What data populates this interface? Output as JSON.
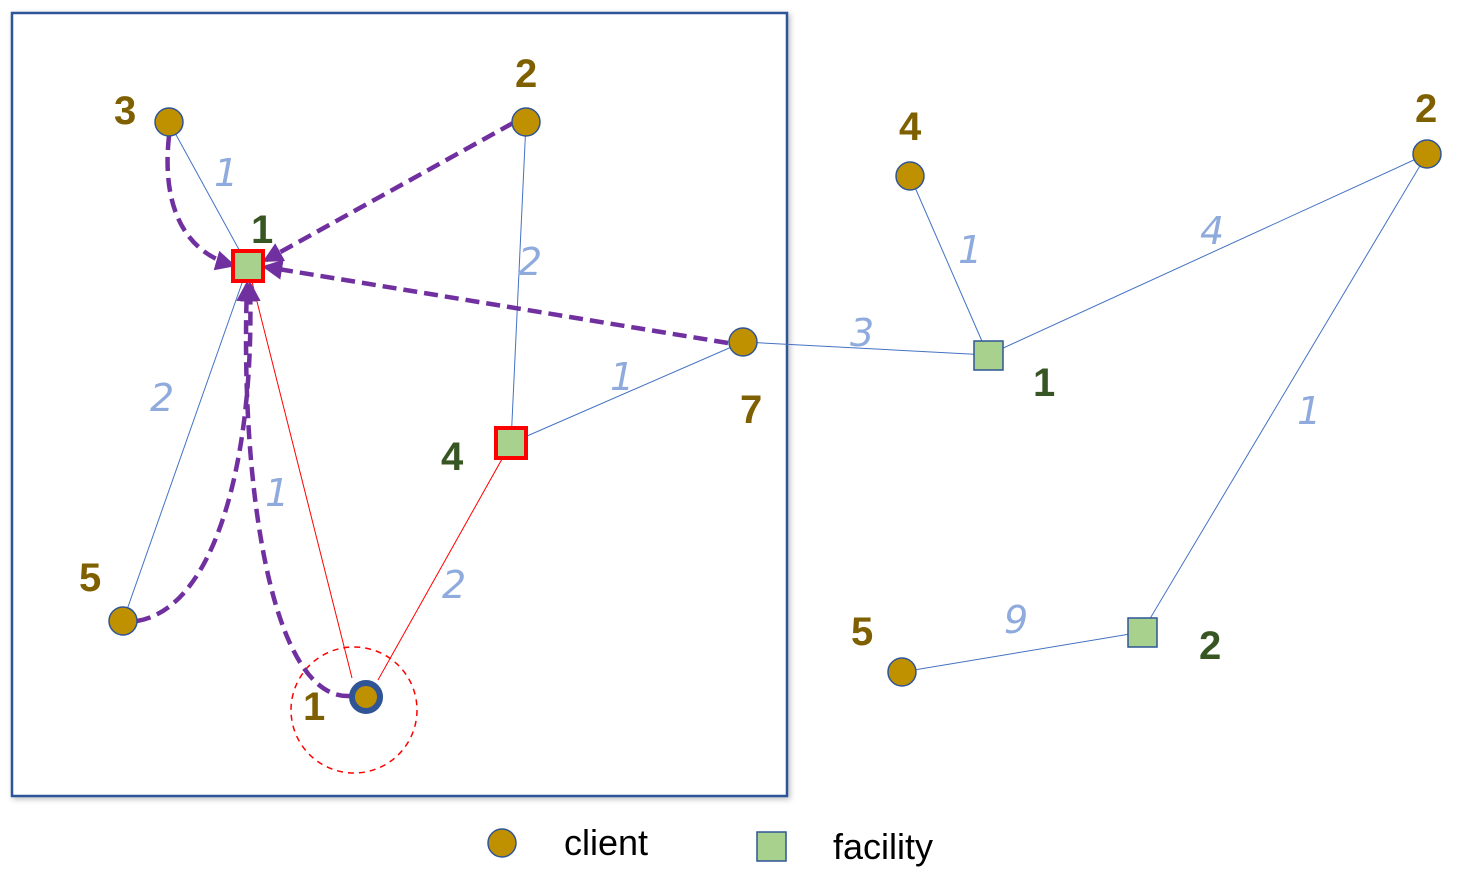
{
  "colors": {
    "client_fill": "#bf9000",
    "client_stroke": "#2f5597",
    "facility_fill": "#a9d18e",
    "facility_stroke": "#2f5597",
    "selected_facility_stroke": "#ff0000",
    "edge_blue": "#4472c4",
    "edge_red": "#ff0000",
    "arrow_purple": "#7030a0",
    "weight_label": "#8faadc",
    "client_label": "#7f6000",
    "facility_label": "#375623",
    "box_border": "#2f5597"
  },
  "clients": [
    {
      "id": "c3",
      "label": "3",
      "icon": "client-circle-icon"
    },
    {
      "id": "c2a",
      "label": "2",
      "icon": "client-circle-icon"
    },
    {
      "id": "c5a",
      "label": "5",
      "icon": "client-circle-icon"
    },
    {
      "id": "c1",
      "label": "1",
      "icon": "client-circle-icon",
      "highlighted": true
    },
    {
      "id": "c7",
      "label": "7",
      "icon": "client-circle-icon"
    },
    {
      "id": "c4",
      "label": "4",
      "icon": "client-circle-icon"
    },
    {
      "id": "c2b",
      "label": "2",
      "icon": "client-circle-icon"
    },
    {
      "id": "c5b",
      "label": "5",
      "icon": "client-circle-icon"
    }
  ],
  "facilities": [
    {
      "id": "f1a",
      "label": "1",
      "icon": "facility-square-icon",
      "selected": true
    },
    {
      "id": "f4",
      "label": "4",
      "icon": "facility-square-icon",
      "selected": true
    },
    {
      "id": "f1b",
      "label": "1",
      "icon": "facility-square-icon"
    },
    {
      "id": "f2",
      "label": "2",
      "icon": "facility-square-icon"
    }
  ],
  "edges": [
    {
      "from": "c3",
      "to": "f1a",
      "weight": "1"
    },
    {
      "from": "c5a",
      "to": "f1a",
      "weight": "2"
    },
    {
      "from": "c1",
      "to": "f1a",
      "weight": "1"
    },
    {
      "from": "c2a",
      "to": "f4",
      "weight": "2"
    },
    {
      "from": "c7",
      "to": "f4",
      "weight": "1"
    },
    {
      "from": "c1",
      "to": "f4",
      "weight": "2"
    },
    {
      "from": "c7",
      "to": "f1b",
      "weight": "3"
    },
    {
      "from": "c4",
      "to": "f1b",
      "weight": "1"
    },
    {
      "from": "c2b",
      "to": "f1b",
      "weight": "4"
    },
    {
      "from": "c2b",
      "to": "f2",
      "weight": "1"
    },
    {
      "from": "c5b",
      "to": "f2",
      "weight": "9"
    }
  ],
  "legend": {
    "client_label": "client",
    "facility_label": "facility"
  }
}
